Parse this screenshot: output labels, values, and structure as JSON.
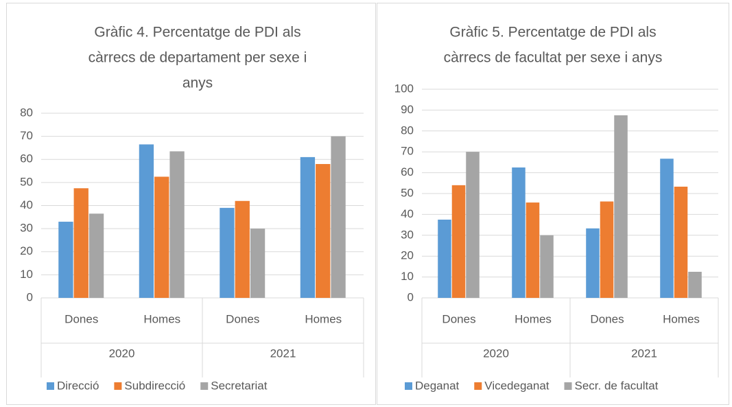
{
  "chart_data": [
    {
      "type": "bar",
      "title": [
        "Gràfic 4. Percentatge de PDI als",
        "càrrecs de departament per sexe i",
        "anys"
      ],
      "categories": [
        "Dones",
        "Homes",
        "Dones",
        "Homes"
      ],
      "groups": [
        "2020",
        "2021"
      ],
      "series": [
        {
          "name": "Direcció",
          "color": "#5b9bd5",
          "values": [
            33,
            66.5,
            39,
            61
          ]
        },
        {
          "name": "Subdirecció",
          "color": "#ed7d31",
          "values": [
            47.5,
            52.5,
            42,
            58
          ]
        },
        {
          "name": "Secretariat",
          "color": "#a5a5a5",
          "values": [
            36.5,
            63.5,
            30,
            70
          ]
        }
      ],
      "ylim": [
        0,
        80
      ],
      "yticks": [
        0,
        10,
        20,
        30,
        40,
        50,
        60,
        70,
        80
      ],
      "grid": true,
      "legend": "bottom"
    },
    {
      "type": "bar",
      "title": [
        "Gràfic 5. Percentatge de PDI als",
        "càrrecs de facultat per sexe i anys"
      ],
      "categories": [
        "Dones",
        "Homes",
        "Dones",
        "Homes"
      ],
      "groups": [
        "2020",
        "2021"
      ],
      "series": [
        {
          "name": "Deganat",
          "color": "#5b9bd5",
          "values": [
            37.5,
            62.5,
            33.3,
            66.7
          ]
        },
        {
          "name": "Vicedeganat",
          "color": "#ed7d31",
          "values": [
            54,
            45.7,
            46.2,
            53.3
          ]
        },
        {
          "name": "Secr. de facultat",
          "color": "#a5a5a5",
          "values": [
            70,
            30,
            87.5,
            12.5
          ]
        }
      ],
      "ylim": [
        0,
        100
      ],
      "yticks": [
        0,
        10,
        20,
        30,
        40,
        50,
        60,
        70,
        80,
        90,
        100
      ],
      "grid": true,
      "legend": "bottom"
    }
  ]
}
